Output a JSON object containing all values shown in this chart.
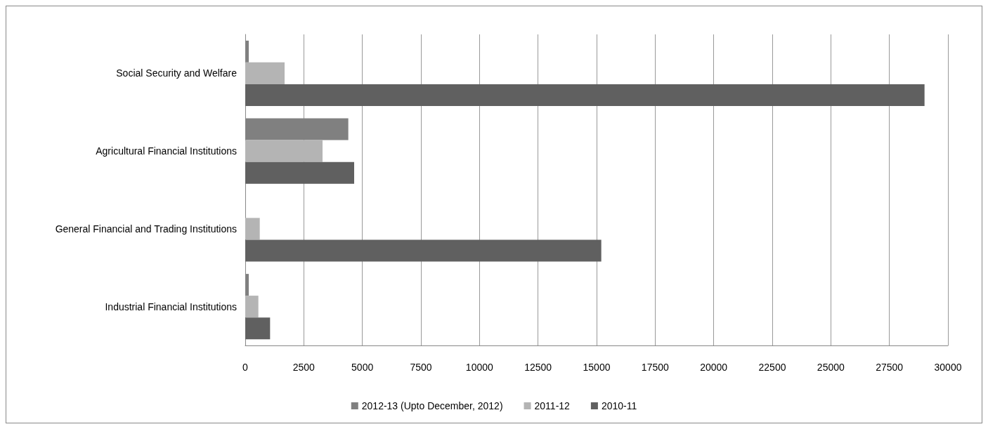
{
  "chart_data": {
    "type": "bar",
    "orientation": "horizontal",
    "categories": [
      "Social Security and Welfare",
      "Agricultural Financial Institutions",
      "General Financial and Trading Institutions",
      "Industrial Financial Institutions"
    ],
    "series": [
      {
        "name": "2012-13 (Upto December, 2012)",
        "color": "#808080",
        "values": [
          150,
          4400,
          null,
          150
        ]
      },
      {
        "name": "2011-12",
        "color": "#b4b4b4",
        "values": [
          1680,
          3300,
          620,
          560
        ]
      },
      {
        "name": "2010-11",
        "color": "#606060",
        "values": [
          29000,
          4650,
          15200,
          1060
        ]
      }
    ],
    "xlim": [
      0,
      30000
    ],
    "xticks": [
      0,
      2500,
      5000,
      7500,
      10000,
      12500,
      15000,
      17500,
      20000,
      22500,
      25000,
      27500,
      30000
    ],
    "grid": "x",
    "legend": "bottom"
  }
}
